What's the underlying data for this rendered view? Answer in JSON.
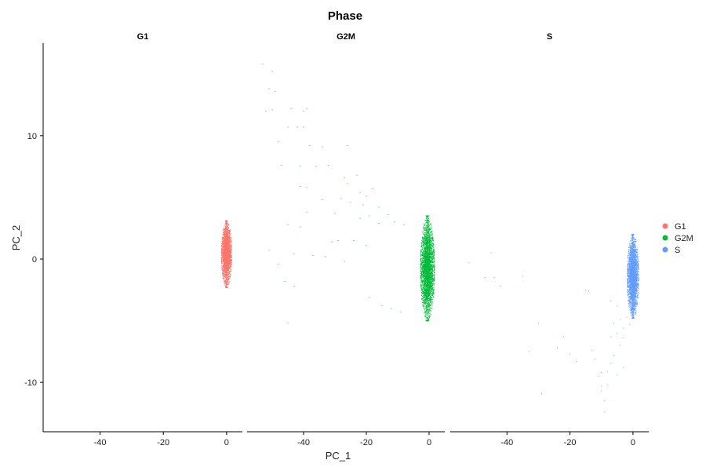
{
  "chart_data": {
    "type": "scatter",
    "title": "Phase",
    "xlabel": "PC_1",
    "ylabel": "PC_2",
    "xlim": [
      -58,
      5
    ],
    "ylim": [
      -14,
      17.5
    ],
    "x_ticks": [
      -40,
      -20,
      0
    ],
    "y_ticks": [
      -10,
      0,
      10
    ],
    "grid": false,
    "legend_position": "right",
    "facets": [
      {
        "label": "G1",
        "color": "#F8766D",
        "core": {
          "x_center": 0,
          "x_spread": 1.6,
          "y_min": -2.3,
          "y_max": 3.1,
          "n": 2400
        },
        "outliers": []
      },
      {
        "label": "G2M",
        "color": "#00BA38",
        "core": {
          "x_center": -0.5,
          "x_spread": 2.2,
          "y_min": -5,
          "y_max": 3.5,
          "n": 3000
        },
        "outliers": [
          [
            -53,
            15.8
          ],
          [
            -50,
            15.2
          ],
          [
            -51,
            13.8
          ],
          [
            -49,
            13.6
          ],
          [
            -52,
            12
          ],
          [
            -50,
            12.1
          ],
          [
            -44,
            12.2
          ],
          [
            -40,
            12
          ],
          [
            -39,
            12.2
          ],
          [
            -42,
            10.7
          ],
          [
            -45,
            10.7
          ],
          [
            -40,
            10.7
          ],
          [
            -48,
            9.5
          ],
          [
            -38,
            9.2
          ],
          [
            -34,
            9.1
          ],
          [
            -26,
            9.2
          ],
          [
            -47,
            7.6
          ],
          [
            -41,
            7.5
          ],
          [
            -36,
            7.5
          ],
          [
            -32,
            7.6
          ],
          [
            -23,
            6.8
          ],
          [
            -27,
            6.6
          ],
          [
            -26,
            6.1
          ],
          [
            -41,
            5.9
          ],
          [
            -39,
            5.8
          ],
          [
            -18,
            5.7
          ],
          [
            -22,
            5.4
          ],
          [
            -20,
            5.1
          ],
          [
            -28,
            4.9
          ],
          [
            -34,
            4.8
          ],
          [
            -25,
            4.6
          ],
          [
            -21,
            4.4
          ],
          [
            -16,
            4.2
          ],
          [
            -39,
            3.8
          ],
          [
            -30,
            3.7
          ],
          [
            -22,
            3.3
          ],
          [
            -13,
            3.6
          ],
          [
            -19,
            3.5
          ],
          [
            -11,
            3.0
          ],
          [
            -16,
            2.9
          ],
          [
            -8,
            2.8
          ],
          [
            -45,
            2.8
          ],
          [
            -41,
            2.6
          ],
          [
            -29,
            1.5
          ],
          [
            -31,
            1.4
          ],
          [
            -24,
            1.5
          ],
          [
            -20,
            1.1
          ],
          [
            -51,
            0.7
          ],
          [
            -43,
            0.4
          ],
          [
            -37,
            0.3
          ],
          [
            -33,
            0.2
          ],
          [
            -27,
            -0.2
          ],
          [
            -48,
            -0.4
          ],
          [
            -46,
            -1.8
          ],
          [
            -43,
            -2.2
          ],
          [
            -19,
            -3.1
          ],
          [
            -15,
            -3.8
          ],
          [
            -12,
            -4.0
          ],
          [
            -9,
            -4.3
          ],
          [
            -45,
            -5.2
          ]
        ]
      },
      {
        "label": "S",
        "color": "#619CFF",
        "core": {
          "x_center": 0,
          "x_spread": 1.8,
          "y_min": -4.8,
          "y_max": 2.0,
          "n": 2600
        },
        "outliers": [
          [
            -52,
            -0.3
          ],
          [
            -45,
            0.5
          ],
          [
            -44,
            -1.5
          ],
          [
            -47,
            -1.5
          ],
          [
            -42,
            -2.2
          ],
          [
            -35,
            -1.4
          ],
          [
            -30,
            -5.2
          ],
          [
            -29,
            -10.9
          ],
          [
            -33,
            -7.5
          ],
          [
            -24,
            -7.2
          ],
          [
            -22,
            -6.3
          ],
          [
            -20,
            -7.7
          ],
          [
            -18,
            -8.3
          ],
          [
            -15,
            -2.5
          ],
          [
            -14,
            -2.6
          ],
          [
            -13,
            -7.4
          ],
          [
            -12,
            -8.1
          ],
          [
            -11,
            -9.5
          ],
          [
            -10,
            -9.2
          ],
          [
            -10,
            -10.7
          ],
          [
            -9,
            -11.5
          ],
          [
            -9,
            -12.4
          ],
          [
            -8,
            -10.2
          ],
          [
            -8,
            -9.1
          ],
          [
            -7,
            -8.5
          ],
          [
            -7,
            -6.3
          ],
          [
            -6,
            -7.8
          ],
          [
            -6,
            -5.2
          ],
          [
            -5,
            -9.4
          ],
          [
            -5,
            -6.0
          ],
          [
            -4,
            -7.0
          ],
          [
            -4,
            -4.9
          ],
          [
            -3,
            -8.8
          ],
          [
            -3,
            -5.6
          ],
          [
            -3,
            -6.4
          ],
          [
            -2,
            -4.7
          ],
          [
            -1,
            -5.3
          ],
          [
            -10,
            -10.3
          ],
          [
            -7,
            -3.4
          ],
          [
            -5,
            -3.8
          ]
        ]
      }
    ],
    "legend": [
      {
        "label": "G1",
        "color": "#F8766D"
      },
      {
        "label": "G2M",
        "color": "#00BA38"
      },
      {
        "label": "S",
        "color": "#619CFF"
      }
    ]
  }
}
